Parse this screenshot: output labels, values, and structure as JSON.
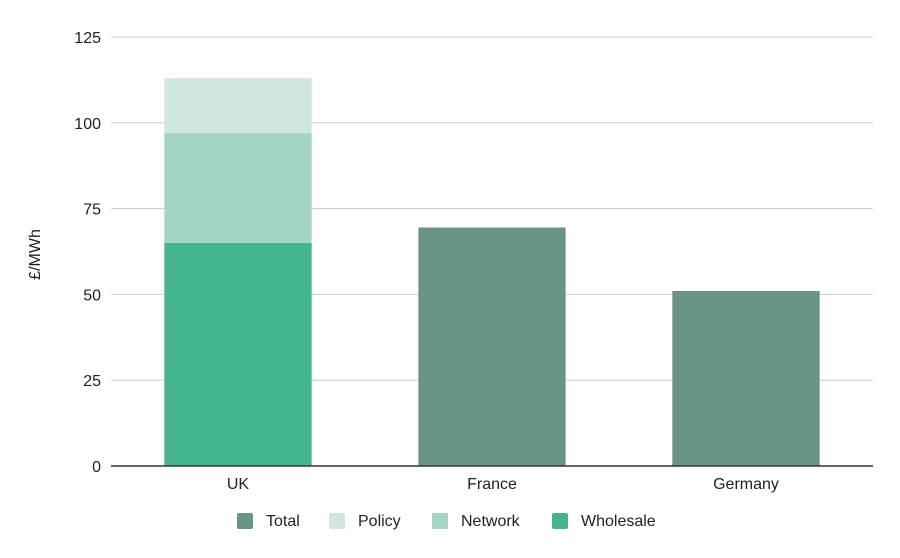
{
  "chart_data": {
    "type": "bar",
    "stacked": true,
    "title": "",
    "xlabel": "",
    "ylabel": "£/MWh",
    "ylim": [
      0,
      125
    ],
    "y_ticks": [
      0,
      25,
      50,
      75,
      100,
      125
    ],
    "grid": true,
    "legend_position": "bottom",
    "categories": [
      "UK",
      "France",
      "Germany"
    ],
    "series": [
      {
        "name": "Total",
        "color": "#6a9484",
        "values": [
          null,
          69.5,
          51
        ]
      },
      {
        "name": "Policy",
        "color": "#cfe7de",
        "values": [
          16,
          null,
          null
        ]
      },
      {
        "name": "Network",
        "color": "#a4d5c4",
        "values": [
          32,
          null,
          null
        ]
      },
      {
        "name": "Wholesale",
        "color": "#44b590",
        "values": [
          65,
          null,
          null
        ]
      }
    ],
    "stack_order": [
      "Wholesale",
      "Network",
      "Policy",
      "Total"
    ]
  }
}
